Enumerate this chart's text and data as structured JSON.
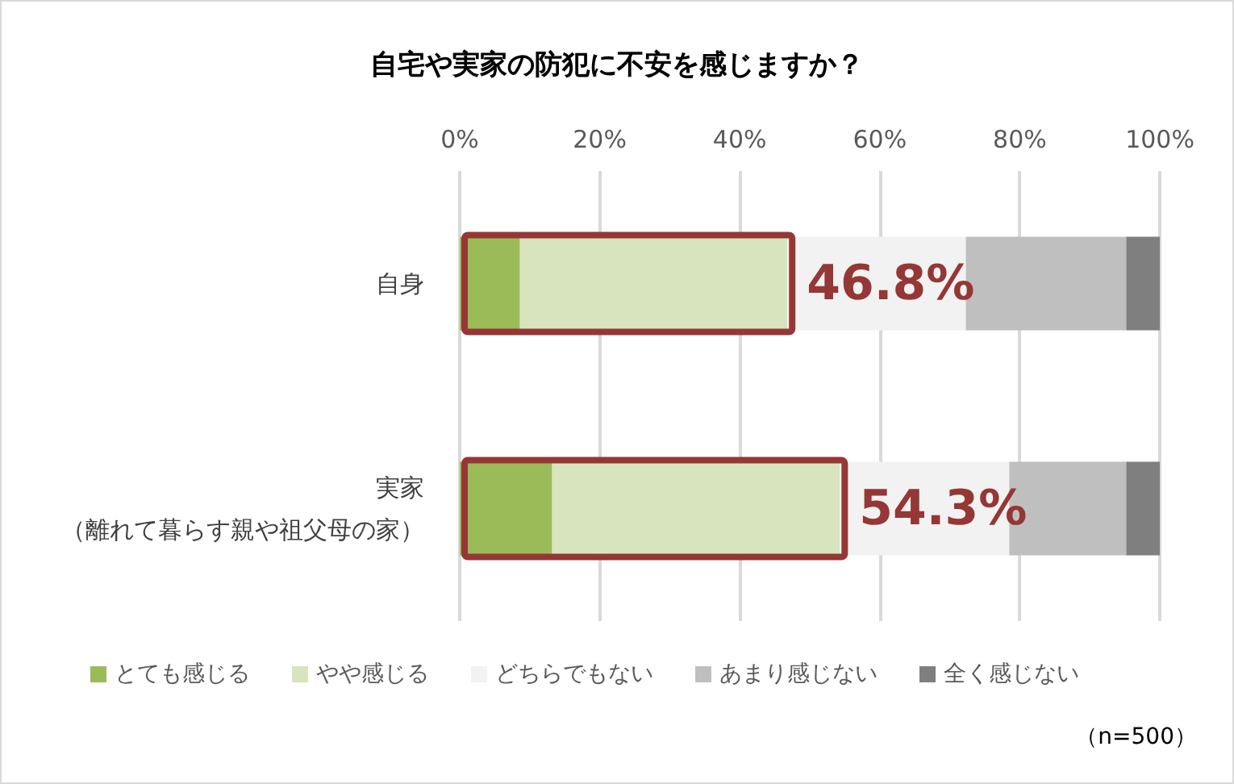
{
  "chart_data": {
    "type": "bar",
    "orientation": "horizontal",
    "stacked": true,
    "title": "自宅や実家の防犯に不安を感じますか？",
    "categories": [
      "自身",
      "実家（離れて暮らす親や祖父母の家）"
    ],
    "series": [
      {
        "name": "とても感じる",
        "color": "#9bbb59",
        "values": [
          8.6,
          13.2
        ]
      },
      {
        "name": "やや感じる",
        "color": "#d7e4bd",
        "values": [
          38.2,
          41.1
        ]
      },
      {
        "name": "どちらでもない",
        "color": "#f2f2f2",
        "values": [
          25.5,
          24.2
        ]
      },
      {
        "name": "あまり感じない",
        "color": "#bfbfbf",
        "values": [
          22.9,
          16.7
        ]
      },
      {
        "name": "全く感じない",
        "color": "#7f7f7f",
        "values": [
          4.8,
          4.8
        ]
      }
    ],
    "xlim": [
      0,
      100
    ],
    "xticks": [
      {
        "value": 0,
        "label": "0%"
      },
      {
        "value": 20,
        "label": "20%"
      },
      {
        "value": 40,
        "label": "40%"
      },
      {
        "value": 60,
        "label": "60%"
      },
      {
        "value": 80,
        "label": "80%"
      },
      {
        "value": 100,
        "label": "100%"
      }
    ],
    "grid": "x",
    "legend": "bottom",
    "annotations": [
      {
        "text": "46.8%",
        "x": 46.8,
        "y": "自身"
      },
      {
        "text": "54.3%",
        "x": 54.3,
        "y": "実家（離れて暮らす親や祖父母の家）"
      },
      "（n=500）"
    ]
  }
}
